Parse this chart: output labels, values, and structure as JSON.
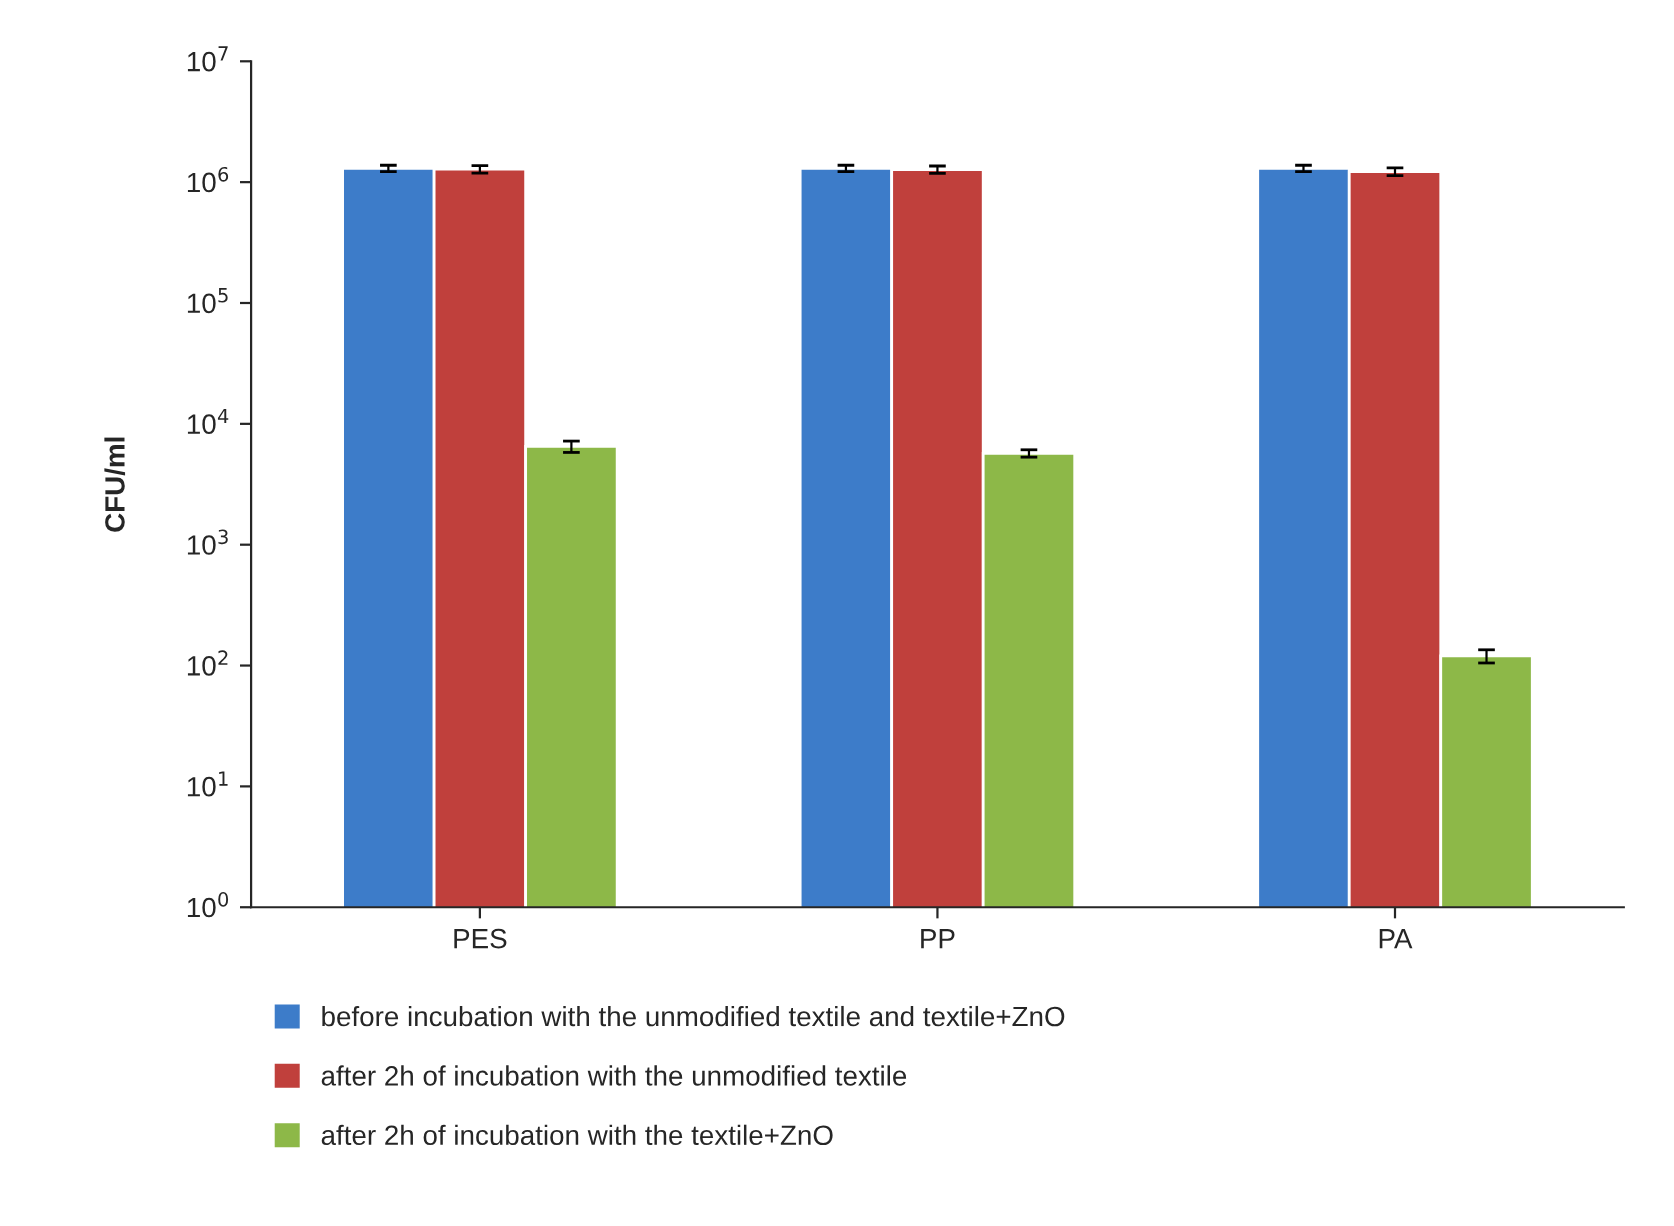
{
  "chart_data": {
    "type": "bar",
    "ylabel": "CFU/ml",
    "log": true,
    "categories": [
      "PES",
      "PP",
      "PA"
    ],
    "series": [
      {
        "name": "before incubation with the unmodified textile and textile+ZnO",
        "color": "#3d7cc9",
        "values": [
          1300000,
          1300000,
          1300000
        ],
        "errors": [
          80000,
          80000,
          80000
        ]
      },
      {
        "name": "after 2h of incubation with the unmodified textile",
        "color": "#c0403c",
        "values": [
          1280000,
          1270000,
          1220000
        ],
        "errors": [
          90000,
          90000,
          90000
        ]
      },
      {
        "name": "after 2h of incubation with the textile+ZnO",
        "color": "#8db848",
        "values": [
          6500,
          5700,
          120
        ],
        "errors": [
          700,
          400,
          15
        ]
      }
    ],
    "ylim": [
      1,
      10000000
    ],
    "yticks": [
      {
        "value": 1,
        "label": "10$^{0}$"
      },
      {
        "value": 10,
        "label": "10$^{1}$"
      },
      {
        "value": 100,
        "label": "10$^{2}$"
      },
      {
        "value": 1000,
        "label": "10$^{3}$"
      },
      {
        "value": 10000,
        "label": "10$^{4}$"
      },
      {
        "value": 100000,
        "label": "10$^{5}$"
      },
      {
        "value": 1000000,
        "label": "10$^{6}$"
      },
      {
        "value": 10000000,
        "label": "10$^{7}$"
      }
    ],
    "legend": "bottom",
    "grid": false
  }
}
